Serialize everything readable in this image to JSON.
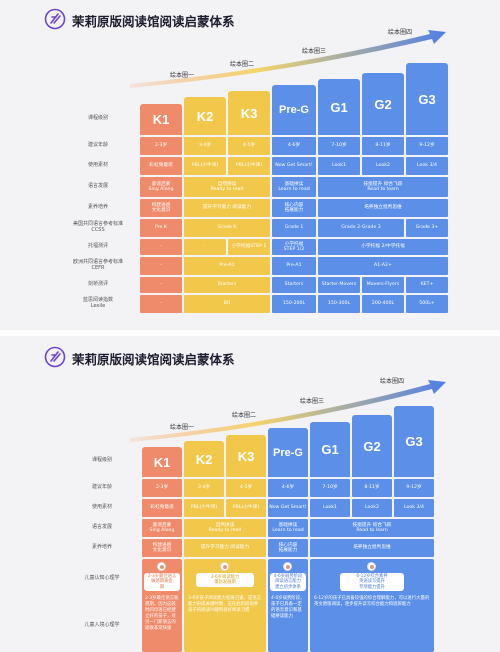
{
  "title": "茉莉原版阅读馆阅读启蒙体系",
  "brand_color": "#6b45c8",
  "colors": {
    "orange": "#ef8a6a",
    "yellow": "#f2c84a",
    "blue": "#5b8fe8",
    "light_blue": "#6aa8f0",
    "arrow": "#4f7fe6"
  },
  "stages": {
    "s1": "绘本圈一",
    "s2": "绘本圈二",
    "s3": "绘本圈三",
    "s4": "绘本圈四"
  },
  "levels": [
    "K1",
    "K2",
    "K3",
    "Pre-G",
    "G1",
    "G2",
    "G3"
  ],
  "rows1": {
    "r1": "课程级别",
    "r2": "建议年龄",
    "r3": "使用素材",
    "r4": "语言发展",
    "r5": "素养培养",
    "r6a": "美国共同语言参考标准",
    "r6b": "CCSS",
    "r7": "托福测评",
    "r8a": "欧洲共同语言参考标准",
    "r8b": "CEFR",
    "r9": "剑桥测评",
    "r10a": "蓝思阅读指数",
    "r10b": "Lexile"
  },
  "age": {
    "k1": "2-3岁",
    "k2": "3-4岁",
    "k3": "4-5岁",
    "pg": "4-6岁",
    "g1": "7-10岁",
    "g2": "8-11岁",
    "g3": "9-12岁"
  },
  "material": {
    "k1": "彩虹兔童谣",
    "k2": "PBL(小牛津)",
    "k3": "PBL(小牛津)",
    "pg": "Now Get Smart!",
    "g1": "Look1",
    "g2": "Look2",
    "g3": "Look 3/4"
  },
  "lang": {
    "k1a": "童谣启蒙",
    "k1b": "Sing Along",
    "k2a": "自然拼读",
    "k2b": "Ready to read",
    "pga": "基础拼读",
    "pgb": "Learn to read",
    "ga": "技能提升 综合飞跃",
    "gb": "Read to learn"
  },
  "lit": {
    "k1a": "构建语感",
    "k1b": "文化意识",
    "k2": "提升学习能力 阅读能力",
    "pga": "核心内容",
    "pgb": "拓展能力",
    "g": "培养独立批判思维"
  },
  "ccss": {
    "k1": "Pre K",
    "k2": "Grade K",
    "pg": "Grade 1",
    "g": "Grade 2-Grade 3",
    "g3": "Grade 3+"
  },
  "toefl": {
    "k1": "-",
    "k2": "-",
    "k3": "小学托福STEP 1",
    "pga": "小学托福",
    "pgb": "STEP 1/2",
    "g": "小学托福 2/中学托福"
  },
  "cefr": {
    "k1": "-",
    "k2": "Pre-A1",
    "pg": "Pre-A1",
    "g": "A1-A2+"
  },
  "cambridge": {
    "k1": "-",
    "k2": "Starters",
    "pg": "Starters",
    "g1": "Starter-Movers",
    "g2": "Movers-Flyers",
    "g3": "KET+"
  },
  "lexile": {
    "k1": "-",
    "k2": "BR",
    "pg": "150-200L",
    "g1": "150-300L",
    "g2": "200-400L",
    "g3": "500L+"
  },
  "rows2": {
    "r1": "课程级别",
    "r2": "建议年龄",
    "r3": "使用素材",
    "r4": "语言发展",
    "r5": "素养培养",
    "r6": "儿童认知心理学",
    "r7": "儿童入境心理学"
  },
  "lit2": {
    "k1a": "构建语感",
    "k1b": "文化意识",
    "k2": "提升学习能力 阅读能力",
    "pga": "核心内容",
    "pgb": "拓展能力",
    "g": "培养独立批判思维"
  },
  "psych": {
    "k1a": "2-3岁最佳语言",
    "k1b": "敏感期黄金",
    "k1c": "期",
    "k2a": "3-6岁阅读能力",
    "k2b": "蓬勃发展期",
    "pga": "4-6岁弱势阶段",
    "pgb": "阅读语言能力",
    "pgc": "建立初步体系",
    "ga": "6-12岁综合素养",
    "gb": "英语读写提升",
    "gc": "专项能力提升"
  },
  "psych_text": {
    "k1": "2-3岁最佳语言敏感期，因为这段时间母语已经建立好的孩子，对另一门新语言的吸收非常快速",
    "k2": "3-6岁孩子阅读能力发展迅速，是语言能力形成关键时期，应在此阶段培养孩子的阅读兴趣和良好阅读习惯",
    "pg": "4-6岁弱势阶段，孩子已具备一定的语音意识和基础拼读能力",
    "g": "6-12岁的孩子已具备较强的综合理解能力，可以进行大量的英文原版阅读，逐步提升读写综合能力和思辨能力"
  }
}
